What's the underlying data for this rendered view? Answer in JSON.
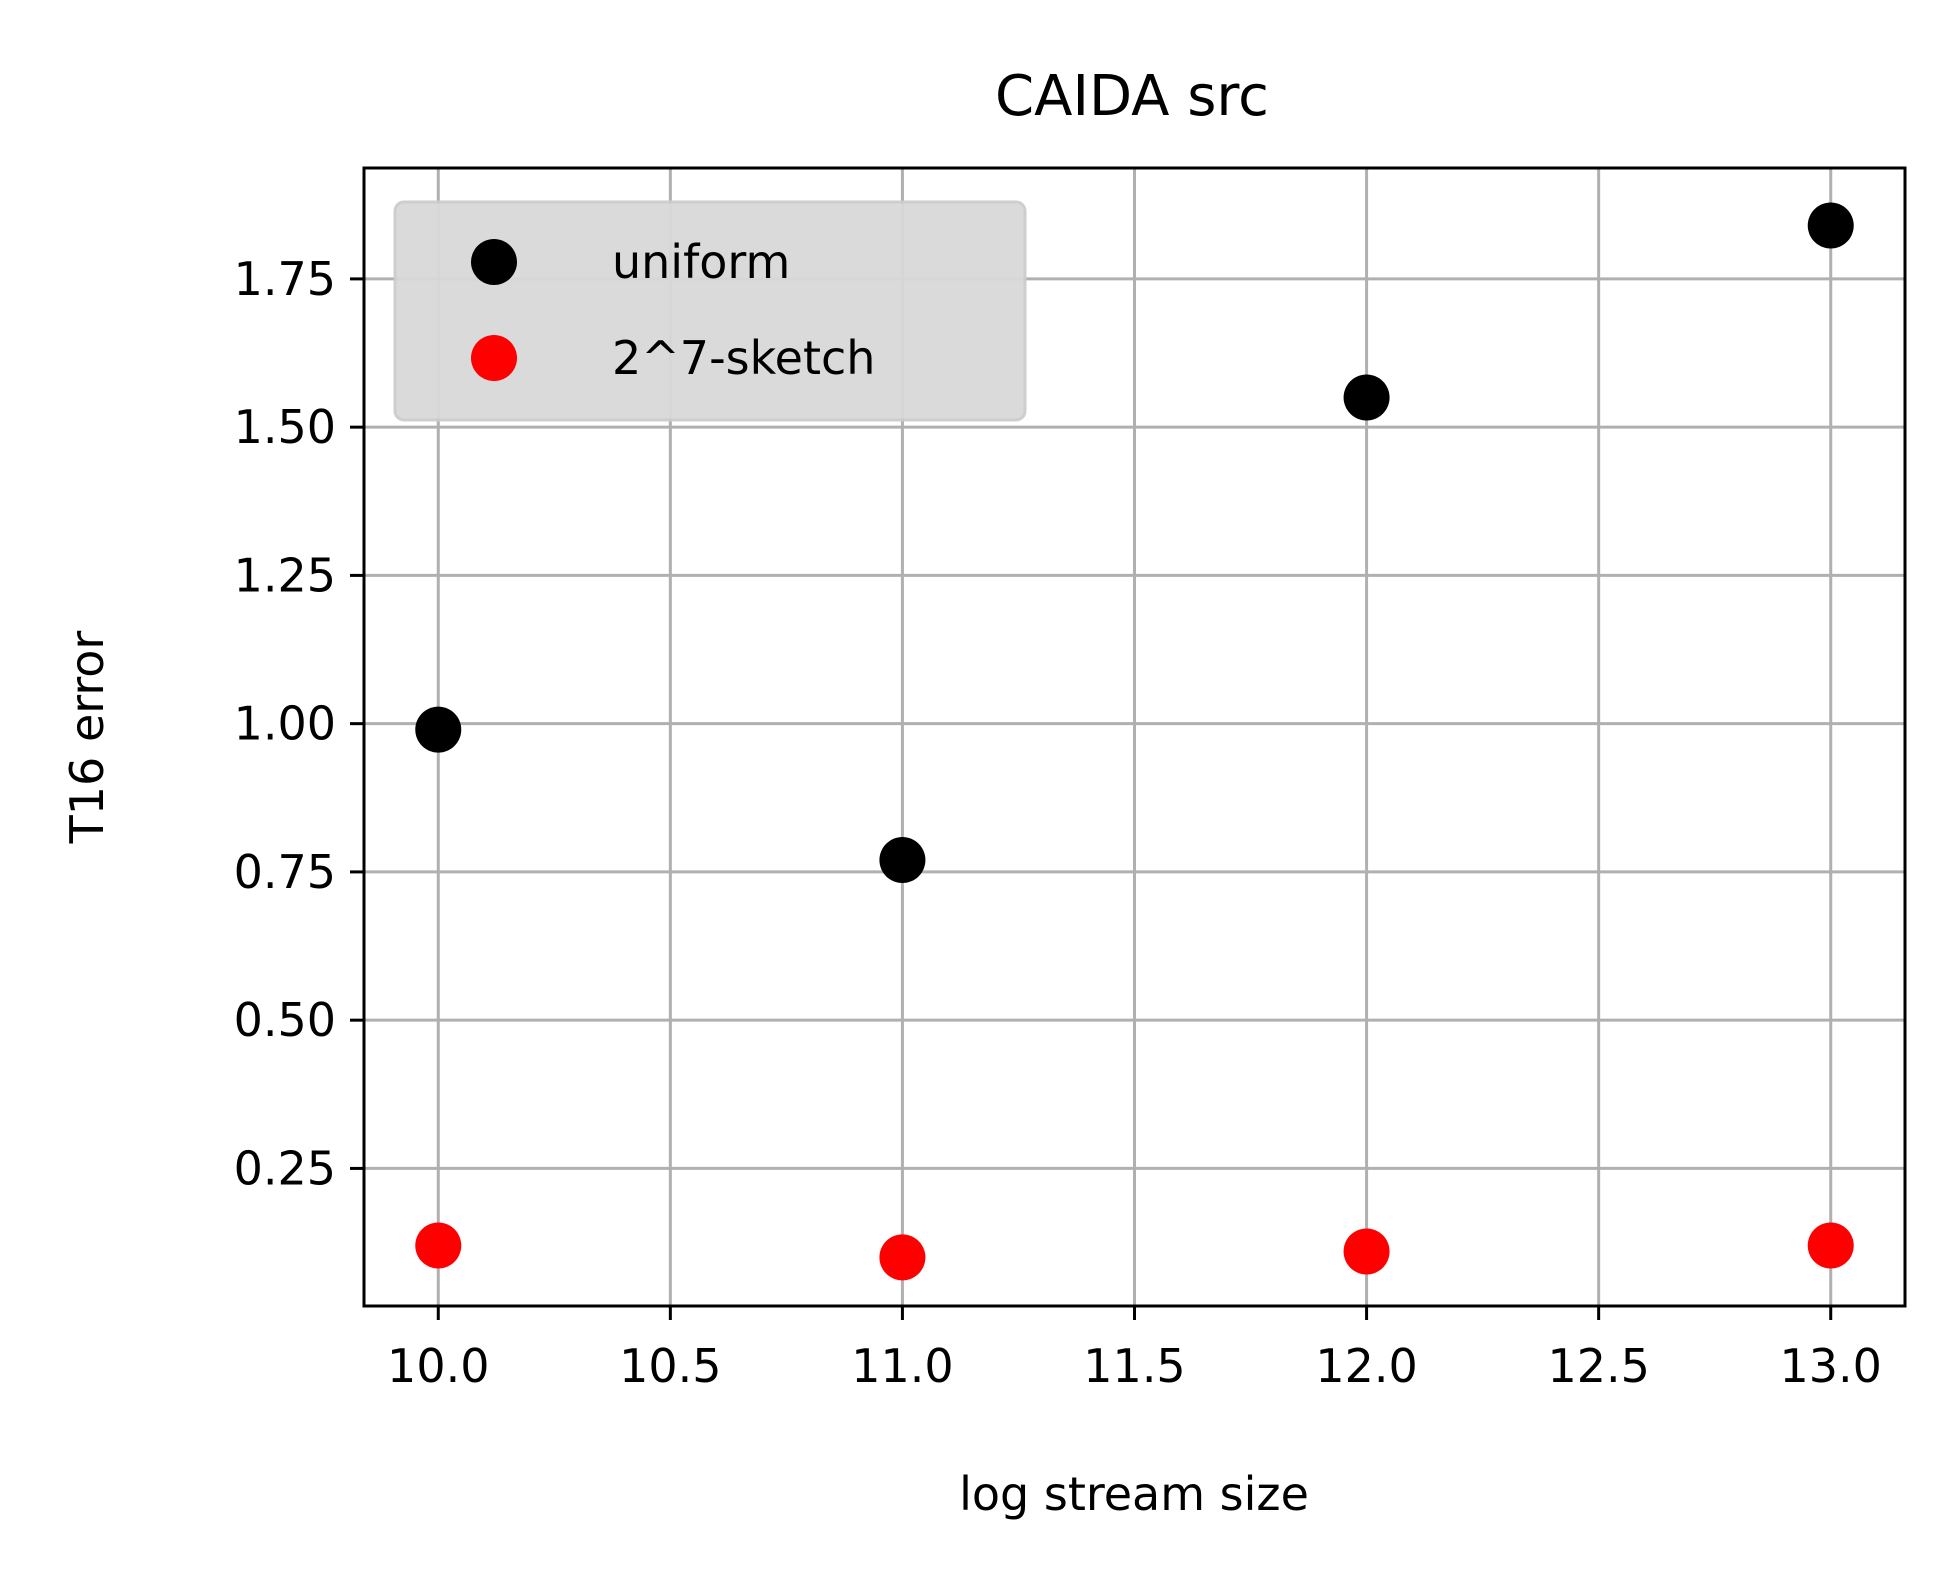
{
  "chart_data": {
    "type": "scatter",
    "title": "CAIDA src",
    "xlabel": "log stream size",
    "ylabel": "T16 error",
    "xlim": [
      9.84,
      13.16
    ],
    "ylim": [
      0.018,
      1.937
    ],
    "xticks": [
      10.0,
      10.5,
      11.0,
      11.5,
      12.0,
      12.5,
      13.0
    ],
    "xtick_labels": [
      "10.0",
      "10.5",
      "11.0",
      "11.5",
      "12.0",
      "12.5",
      "13.0"
    ],
    "yticks": [
      0.25,
      0.5,
      0.75,
      1.0,
      1.25,
      1.5,
      1.75
    ],
    "ytick_labels": [
      "0.25",
      "0.50",
      "0.75",
      "1.00",
      "1.25",
      "1.50",
      "1.75"
    ],
    "grid": true,
    "legend_position": "upper-left",
    "series": [
      {
        "name": "uniform",
        "color": "#000000",
        "x": [
          10,
          11,
          12,
          13
        ],
        "y": [
          0.99,
          0.77,
          1.55,
          1.84
        ]
      },
      {
        "name": "2^7-sketch",
        "color": "#ff0000",
        "x": [
          10,
          11,
          12,
          13
        ],
        "y": [
          0.12,
          0.1,
          0.11,
          0.12
        ]
      }
    ]
  }
}
